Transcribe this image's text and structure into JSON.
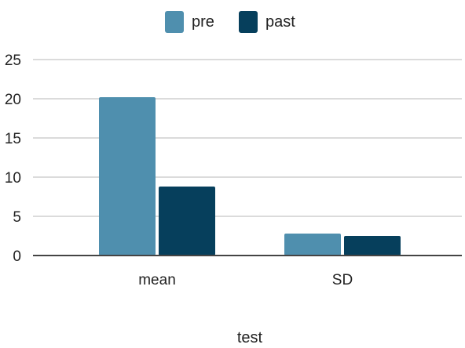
{
  "chart_data": {
    "type": "bar",
    "title": "",
    "xlabel": "test",
    "ylabel": "",
    "categories": [
      "mean",
      "SD"
    ],
    "series": [
      {
        "name": "pre",
        "values": [
          20.2,
          2.8
        ],
        "color": "#4f8fae"
      },
      {
        "name": "past",
        "values": [
          8.8,
          2.5
        ],
        "color": "#063f5c"
      }
    ],
    "ylim": [
      0,
      25
    ],
    "yticks": [
      "0",
      "5",
      "10",
      "15",
      "20",
      "25"
    ],
    "grid": true,
    "gridline_color": "#cfcfcf",
    "axis_color": "#444444",
    "legend_position": "top-center"
  }
}
